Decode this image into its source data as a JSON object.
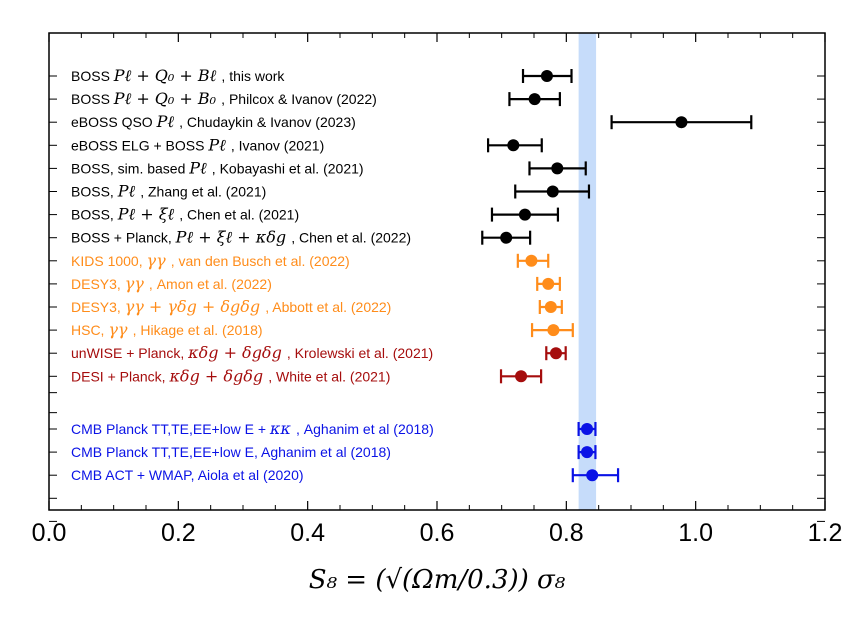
{
  "chart_data": {
    "type": "forest",
    "xlabel": "S₈ = (√(Ωm/0.3)) σ₈",
    "xlim": [
      0.0,
      1.2
    ],
    "x_ticks": [
      "0.0",
      "0.2",
      "0.4",
      "0.6",
      "0.8",
      "1.0",
      "1.2"
    ],
    "band": {
      "min": 0.819,
      "max": 0.846,
      "color": "#c6dcfa"
    },
    "colors": {
      "black": "#000000",
      "orange": "#ff8c1a",
      "darkred": "#a50d0d",
      "blue": "#0a12e6"
    },
    "entries": [
      {
        "color": "black",
        "value": 0.77,
        "err_low": 0.037,
        "err_high": 0.038,
        "pre": "BOSS",
        "math": "Pℓ + Q₀ + Bℓ",
        "post": ", this work"
      },
      {
        "color": "black",
        "value": 0.751,
        "err_low": 0.039,
        "err_high": 0.039,
        "pre": "BOSS",
        "math": "Pℓ + Q₀ + B₀",
        "post": ", Philcox & Ivanov (2022)"
      },
      {
        "color": "black",
        "value": 0.978,
        "err_low": 0.108,
        "err_high": 0.108,
        "pre": "eBOSS QSO",
        "math": "Pℓ",
        "post": ", Chudaykin & Ivanov (2023)"
      },
      {
        "color": "black",
        "value": 0.718,
        "err_low": 0.039,
        "err_high": 0.044,
        "pre": "eBOSS ELG + BOSS",
        "math": "Pℓ",
        "post": ", Ivanov (2021)"
      },
      {
        "color": "black",
        "value": 0.786,
        "err_low": 0.043,
        "err_high": 0.044,
        "pre": "BOSS, sim. based",
        "math": "Pℓ",
        "post": ", Kobayashi et al. (2021)"
      },
      {
        "color": "black",
        "value": 0.779,
        "err_low": 0.058,
        "err_high": 0.056,
        "pre": "BOSS,",
        "math": "Pℓ",
        "post": ", Zhang et al. (2021)"
      },
      {
        "color": "black",
        "value": 0.736,
        "err_low": 0.051,
        "err_high": 0.051,
        "pre": "BOSS,",
        "math": "Pℓ + ξℓ",
        "post": ", Chen et al. (2021)"
      },
      {
        "color": "black",
        "value": 0.707,
        "err_low": 0.037,
        "err_high": 0.037,
        "pre": "BOSS + Planck,",
        "math": "Pℓ + ξℓ + κδg",
        "post": ", Chen et al. (2022)"
      },
      {
        "color": "orange",
        "value": 0.746,
        "err_low": 0.021,
        "err_high": 0.026,
        "pre": "KIDS 1000,",
        "math": "γγ",
        "post": ", van den Busch et al. (2022)"
      },
      {
        "color": "orange",
        "value": 0.772,
        "err_low": 0.017,
        "err_high": 0.018,
        "pre": "DESY3,",
        "math": "γγ",
        "post": ", Amon et al. (2022)"
      },
      {
        "color": "orange",
        "value": 0.776,
        "err_low": 0.017,
        "err_high": 0.017,
        "pre": "DESY3,",
        "math": "γγ + γδg + δgδg",
        "post": ", Abbott et al. (2022)"
      },
      {
        "color": "orange",
        "value": 0.78,
        "err_low": 0.033,
        "err_high": 0.03,
        "pre": "HSC,",
        "math": "γγ",
        "post": ", Hikage et al. (2018)"
      },
      {
        "color": "darkred",
        "value": 0.784,
        "err_low": 0.015,
        "err_high": 0.015,
        "pre": "unWISE + Planck,",
        "math": "κδg + δgδg",
        "post": ", Krolewski et al. (2021)"
      },
      {
        "color": "darkred",
        "value": 0.73,
        "err_low": 0.031,
        "err_high": 0.031,
        "pre": "DESI + Planck,",
        "math": "κδg + δgδg",
        "post": ", White et al. (2021)"
      },
      {
        "color": "blue",
        "value": 0.832,
        "err_low": 0.013,
        "err_high": 0.013,
        "pre": "CMB Planck TT,TE,EE+low E +",
        "math": "κκ",
        "post": ", Aghanim et al (2018)"
      },
      {
        "color": "blue",
        "value": 0.832,
        "err_low": 0.013,
        "err_high": 0.013,
        "pre": "CMB Planck TT,TE,EE+low E,",
        "math": "",
        "post": "Aghanim et al (2018)"
      },
      {
        "color": "blue",
        "value": 0.84,
        "err_low": 0.03,
        "err_high": 0.04,
        "pre": "CMB ACT + WMAP,",
        "math": "",
        "post": "Aiola et al (2020)"
      }
    ]
  }
}
